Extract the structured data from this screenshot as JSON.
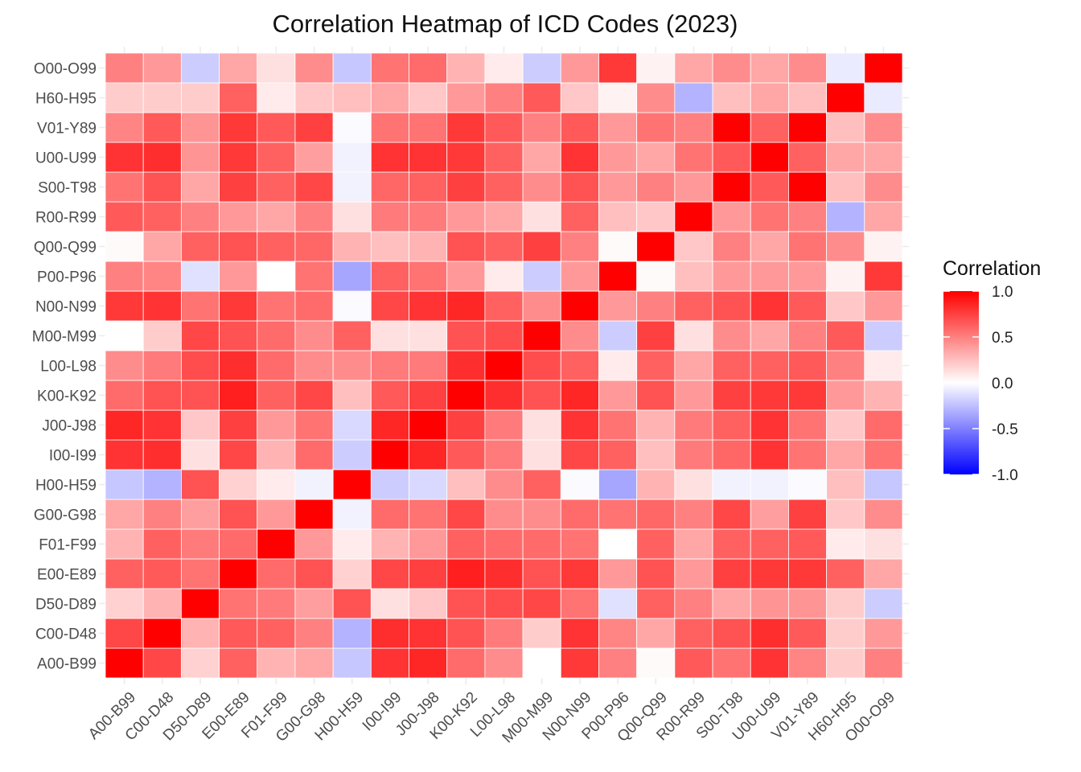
{
  "chart_data": {
    "type": "heatmap",
    "title": "Correlation Heatmap of ICD Codes (2023)",
    "xlabel": "",
    "ylabel": "",
    "x_categories": [
      "A00-B99",
      "C00-D48",
      "D50-D89",
      "E00-E89",
      "F01-F99",
      "G00-G98",
      "H00-H59",
      "I00-I99",
      "J00-J98",
      "K00-K92",
      "L00-L98",
      "M00-M99",
      "N00-N99",
      "P00-P96",
      "Q00-Q99",
      "R00-R99",
      "S00-T98",
      "U00-U99",
      "V01-Y89",
      "H60-H95",
      "O00-O99"
    ],
    "y_categories": [
      "A00-B99",
      "C00-D48",
      "D50-D89",
      "E00-E89",
      "F01-F99",
      "G00-G98",
      "H00-H59",
      "I00-I99",
      "J00-J98",
      "K00-K92",
      "L00-L98",
      "M00-M99",
      "N00-N99",
      "P00-P96",
      "Q00-Q99",
      "R00-R99",
      "S00-T98",
      "U00-U99",
      "V01-Y89",
      "H60-H95",
      "O00-O99"
    ],
    "values": [
      [
        1.0,
        0.72,
        0.18,
        0.62,
        0.3,
        0.35,
        -0.22,
        0.8,
        0.85,
        0.58,
        0.45,
        0.0,
        0.78,
        0.5,
        0.02,
        0.65,
        0.55,
        0.8,
        0.48,
        0.2,
        0.5
      ],
      [
        0.72,
        1.0,
        0.3,
        0.65,
        0.62,
        0.5,
        -0.3,
        0.82,
        0.8,
        0.68,
        0.52,
        0.2,
        0.8,
        0.48,
        0.35,
        0.62,
        0.68,
        0.82,
        0.65,
        0.2,
        0.4
      ],
      [
        0.18,
        0.3,
        1.0,
        0.55,
        0.52,
        0.38,
        0.68,
        0.12,
        0.22,
        0.68,
        0.7,
        0.72,
        0.55,
        -0.12,
        0.62,
        0.5,
        0.35,
        0.42,
        0.42,
        0.2,
        -0.2
      ],
      [
        0.62,
        0.65,
        0.55,
        1.0,
        0.58,
        0.68,
        0.18,
        0.72,
        0.75,
        0.88,
        0.82,
        0.68,
        0.78,
        0.4,
        0.68,
        0.4,
        0.75,
        0.78,
        0.78,
        0.62,
        0.35
      ],
      [
        0.3,
        0.62,
        0.52,
        0.58,
        1.0,
        0.4,
        0.08,
        0.3,
        0.4,
        0.62,
        0.58,
        0.58,
        0.55,
        0.0,
        0.62,
        0.35,
        0.62,
        0.62,
        0.65,
        0.08,
        0.12
      ],
      [
        0.35,
        0.5,
        0.38,
        0.68,
        0.4,
        1.0,
        -0.05,
        0.58,
        0.55,
        0.72,
        0.45,
        0.45,
        0.58,
        0.55,
        0.6,
        0.5,
        0.72,
        0.38,
        0.75,
        0.22,
        0.45
      ],
      [
        -0.22,
        -0.3,
        0.68,
        0.18,
        0.08,
        -0.05,
        1.0,
        -0.2,
        -0.15,
        0.25,
        0.45,
        0.62,
        -0.02,
        -0.35,
        0.3,
        0.12,
        -0.05,
        -0.05,
        -0.02,
        0.25,
        -0.22
      ],
      [
        0.8,
        0.82,
        0.12,
        0.72,
        0.3,
        0.58,
        -0.2,
        1.0,
        0.85,
        0.65,
        0.52,
        0.12,
        0.72,
        0.62,
        0.25,
        0.52,
        0.6,
        0.8,
        0.55,
        0.35,
        0.55
      ],
      [
        0.85,
        0.8,
        0.22,
        0.75,
        0.4,
        0.55,
        -0.15,
        0.85,
        1.0,
        0.75,
        0.52,
        0.12,
        0.8,
        0.55,
        0.3,
        0.52,
        0.62,
        0.8,
        0.55,
        0.22,
        0.58
      ],
      [
        0.58,
        0.68,
        0.68,
        0.88,
        0.62,
        0.72,
        0.25,
        0.65,
        0.75,
        1.0,
        0.82,
        0.68,
        0.85,
        0.4,
        0.68,
        0.4,
        0.75,
        0.78,
        0.78,
        0.4,
        0.3
      ],
      [
        0.45,
        0.52,
        0.7,
        0.82,
        0.58,
        0.45,
        0.45,
        0.52,
        0.52,
        0.82,
        1.0,
        0.7,
        0.62,
        0.08,
        0.62,
        0.35,
        0.62,
        0.62,
        0.65,
        0.5,
        0.08
      ],
      [
        0.0,
        0.2,
        0.72,
        0.68,
        0.58,
        0.45,
        0.62,
        0.12,
        0.12,
        0.68,
        0.7,
        1.0,
        0.45,
        -0.2,
        0.75,
        0.12,
        0.45,
        0.35,
        0.5,
        0.65,
        -0.2
      ],
      [
        0.78,
        0.8,
        0.55,
        0.78,
        0.55,
        0.58,
        -0.02,
        0.72,
        0.8,
        0.85,
        0.62,
        0.45,
        1.0,
        0.4,
        0.5,
        0.62,
        0.68,
        0.8,
        0.65,
        0.22,
        0.4
      ],
      [
        0.5,
        0.48,
        -0.12,
        0.4,
        0.0,
        0.55,
        -0.35,
        0.62,
        0.55,
        0.4,
        0.08,
        -0.2,
        0.4,
        1.0,
        0.02,
        0.25,
        0.4,
        0.4,
        0.4,
        0.05,
        0.78
      ],
      [
        0.02,
        0.35,
        0.62,
        0.68,
        0.62,
        0.6,
        0.3,
        0.25,
        0.3,
        0.68,
        0.62,
        0.75,
        0.5,
        0.02,
        1.0,
        0.22,
        0.5,
        0.35,
        0.55,
        0.45,
        0.05
      ],
      [
        0.65,
        0.62,
        0.5,
        0.4,
        0.35,
        0.5,
        0.12,
        0.52,
        0.52,
        0.4,
        0.35,
        0.12,
        0.62,
        0.25,
        0.22,
        1.0,
        0.4,
        0.55,
        0.5,
        -0.3,
        0.35
      ],
      [
        0.55,
        0.68,
        0.35,
        0.75,
        0.62,
        0.72,
        -0.05,
        0.6,
        0.62,
        0.75,
        0.62,
        0.45,
        0.68,
        0.4,
        0.5,
        0.4,
        1.0,
        0.65,
        1.0,
        0.25,
        0.45
      ],
      [
        0.8,
        0.82,
        0.42,
        0.78,
        0.62,
        0.38,
        -0.05,
        0.8,
        0.8,
        0.78,
        0.62,
        0.35,
        0.8,
        0.4,
        0.35,
        0.55,
        0.65,
        1.0,
        0.62,
        0.35,
        0.35
      ],
      [
        0.48,
        0.65,
        0.42,
        0.78,
        0.65,
        0.75,
        -0.02,
        0.55,
        0.55,
        0.78,
        0.65,
        0.5,
        0.65,
        0.4,
        0.55,
        0.5,
        1.0,
        0.62,
        1.0,
        0.25,
        0.45
      ],
      [
        0.2,
        0.2,
        0.2,
        0.62,
        0.08,
        0.22,
        0.25,
        0.35,
        0.22,
        0.4,
        0.5,
        0.65,
        0.22,
        0.05,
        0.45,
        -0.3,
        0.25,
        0.35,
        0.25,
        1.0,
        -0.08
      ],
      [
        0.5,
        0.4,
        -0.2,
        0.35,
        0.12,
        0.45,
        -0.22,
        0.55,
        0.58,
        0.3,
        0.08,
        -0.2,
        0.4,
        0.78,
        0.05,
        0.35,
        0.45,
        0.35,
        0.45,
        -0.08,
        1.0
      ]
    ],
    "color_scale": {
      "low": "#0000ff",
      "mid": "#ffffff",
      "high": "#ff0000",
      "range": [
        -1,
        1
      ]
    },
    "legend": {
      "title": "Correlation",
      "ticks": [
        "1.0",
        "0.5",
        "0.0",
        "-0.5",
        "-1.0"
      ],
      "tick_values": [
        1.0,
        0.5,
        0.0,
        -0.5,
        -1.0
      ],
      "position": "right"
    },
    "grid": true
  }
}
